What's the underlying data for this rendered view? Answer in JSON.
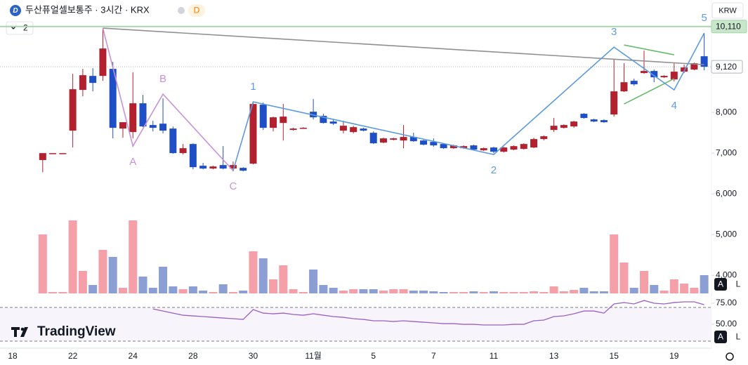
{
  "header": {
    "logo": "D",
    "symbol": "두산퓨얼셀보통주 · 3시간 · KRX",
    "badge": "D",
    "indicator_count": "2",
    "currency": "KRW"
  },
  "buttons": {
    "auto": "A",
    "log": "L"
  },
  "brand": "TradingView",
  "chart_data": {
    "type": "candlestick",
    "categories": [
      "18",
      null,
      null,
      null,
      null,
      null,
      "22",
      null,
      null,
      null,
      null,
      null,
      "24",
      null,
      null,
      null,
      null,
      null,
      "28",
      null,
      null,
      null,
      null,
      null,
      "30",
      null,
      null,
      null,
      null,
      null,
      "11월",
      null,
      null,
      null,
      null,
      null,
      "5",
      null,
      null,
      null,
      null,
      null,
      "7",
      null,
      null,
      null,
      null,
      null,
      "11",
      null,
      null,
      null,
      null,
      null,
      "13",
      null,
      null,
      null,
      null,
      null,
      "15",
      null,
      null,
      null,
      null,
      null,
      "19",
      null,
      null,
      null
    ],
    "open": [
      null,
      null,
      null,
      6830,
      7000,
      7000,
      7552,
      8552,
      8896,
      8896,
      9069,
      7603,
      7517,
      8224,
      7690,
      7724,
      7603,
      7000,
      7224,
      6690,
      6621,
      6707,
      6621,
      6638,
      6741,
      8190,
      7621,
      7741,
      7569,
      7621,
      8017,
      7914,
      7776,
      7552,
      7517,
      7603,
      7500,
      7259,
      7328,
      7310,
      7397,
      7310,
      7276,
      7224,
      7121,
      7121,
      7190,
      7069,
      7138,
      7034,
      7086,
      7103,
      7138,
      7345,
      7569,
      7621,
      7655,
      7966,
      7828,
      7810,
      7948,
      8517,
      8776,
      8966,
      9017,
      8862,
      8810,
      9000,
      9052,
      9379
    ],
    "high": [
      null,
      null,
      null,
      7000,
      7000,
      7000,
      8948,
      9069,
      9086,
      10069,
      9241,
      7759,
      8983,
      8431,
      7793,
      8345,
      7655,
      7224,
      7241,
      6759,
      6690,
      7172,
      6793,
      6655,
      8259,
      8241,
      7897,
      8207,
      7621,
      7638,
      8328,
      7966,
      7828,
      7793,
      7672,
      7621,
      7534,
      7379,
      7379,
      7690,
      7500,
      7328,
      7362,
      7241,
      7207,
      7190,
      7207,
      7138,
      7155,
      7155,
      7190,
      7241,
      7379,
      7431,
      7862,
      7707,
      7793,
      7983,
      7845,
      7828,
      9310,
      9207,
      8828,
      9517,
      9052,
      8914,
      9207,
      9172,
      9224,
      9948
    ],
    "low": [
      null,
      null,
      null,
      6530,
      7000,
      7000,
      7138,
      8396,
      8517,
      8776,
      7362,
      7379,
      7362,
      7638,
      7534,
      7483,
      6983,
      6966,
      6603,
      6603,
      6603,
      6603,
      6552,
      6552,
      6724,
      7569,
      7534,
      7310,
      7552,
      7603,
      7828,
      7724,
      7690,
      7483,
      7483,
      7534,
      7224,
      7241,
      7310,
      7121,
      7276,
      7190,
      7155,
      7103,
      7103,
      7103,
      7069,
      7052,
      7000,
      7017,
      7069,
      7086,
      7121,
      7310,
      7517,
      7603,
      7621,
      7845,
      7759,
      7741,
      7897,
      8500,
      8655,
      8948,
      8741,
      8845,
      8759,
      8966,
      9034,
      9034
    ],
    "close": [
      null,
      null,
      null,
      7000,
      7000,
      7000,
      8569,
      8914,
      8724,
      9569,
      7621,
      7759,
      8224,
      7655,
      7621,
      7552,
      7000,
      7121,
      6655,
      6621,
      6672,
      6621,
      6707,
      6569,
      8207,
      7621,
      7879,
      7897,
      7603,
      7621,
      7879,
      7741,
      7724,
      7672,
      7638,
      7552,
      7241,
      7362,
      7362,
      7397,
      7293,
      7207,
      7190,
      7121,
      7190,
      7172,
      7086,
      7121,
      7034,
      7138,
      7172,
      7224,
      7345,
      7414,
      7672,
      7690,
      7776,
      7862,
      7776,
      7759,
      8517,
      8741,
      8690,
      9017,
      8862,
      8897,
      9000,
      9103,
      9207,
      9120
    ],
    "volume": [
      null,
      null,
      null,
      84,
      2,
      2,
      104,
      32,
      12,
      62,
      52,
      8,
      104,
      24,
      8,
      38,
      10,
      6,
      10,
      4,
      2,
      13,
      2,
      4,
      60,
      50,
      20,
      40,
      6,
      2,
      34,
      12,
      8,
      4,
      6,
      6,
      6,
      4,
      6,
      6,
      4,
      4,
      3,
      2,
      2,
      2,
      3,
      2,
      3,
      2,
      2,
      2,
      3,
      2,
      10,
      3,
      5,
      8,
      3,
      3,
      84,
      44,
      8,
      32,
      12,
      4,
      20,
      14,
      8,
      26
    ],
    "rsi": [
      null,
      null,
      null,
      null,
      null,
      null,
      null,
      null,
      null,
      null,
      null,
      null,
      null,
      null,
      68.3,
      65.8,
      63.3,
      60.8,
      60,
      59.2,
      58.3,
      57.5,
      56.7,
      55.8,
      67.5,
      63.3,
      62.5,
      63.3,
      61.7,
      60.8,
      62.5,
      60.8,
      59.2,
      58.3,
      56.7,
      55.8,
      54.2,
      54.2,
      53.3,
      54.2,
      53.3,
      52.5,
      51.7,
      50.8,
      50.8,
      50,
      50,
      49.2,
      49.2,
      49.2,
      50,
      50,
      54.2,
      55,
      59.2,
      60,
      62.5,
      65.8,
      65.8,
      63.3,
      74.2,
      75.8,
      74.2,
      78.3,
      75,
      74.2,
      75.8,
      76.7,
      76.7,
      73.3
    ],
    "ylim": [
      3400,
      10760
    ],
    "yticks": [
      {
        "value": 4000,
        "label": "4,000"
      },
      {
        "value": 5000,
        "label": "5,000"
      },
      {
        "value": 6000,
        "label": "6,000"
      },
      {
        "value": 7000,
        "label": "7,000"
      },
      {
        "value": 8000,
        "label": "8,000"
      }
    ],
    "volume_lim": [
      0,
      120
    ],
    "rsi_ylim": [
      26.7,
      79.2
    ],
    "rsi_yticks": [
      {
        "value": 75,
        "label": "75.00"
      },
      {
        "value": 50,
        "label": "50.00"
      }
    ],
    "rsi_bands": [
      70,
      30
    ],
    "price_lines": [
      {
        "value": 10110,
        "label": "10,110",
        "color": "#a5d6a7"
      },
      {
        "value": 9120,
        "label": "9,120",
        "color": "#b2b5be"
      }
    ],
    "up_color": "#b3212e",
    "down_color": "#1f4fc6",
    "volume_up_color": "#f5a0a8",
    "volume_down_color": "#8b9fd4",
    "rsi_color": "#9c5fc4",
    "waves": [
      {
        "color": "#c792d8",
        "points": [
          {
            "x": 9,
            "y": 10069,
            "label": null
          },
          {
            "x": 12,
            "y": 7172,
            "label": "A"
          },
          {
            "x": 15,
            "y": 8448,
            "label": "B"
          },
          {
            "x": 22,
            "y": 6569,
            "label": "C"
          }
        ]
      },
      {
        "color": "#5b9be0",
        "points": [
          {
            "x": 22,
            "y": 6569,
            "label": null
          },
          {
            "x": 24,
            "y": 8259,
            "label": "1"
          },
          {
            "x": 48,
            "y": 6966,
            "label": "2"
          },
          {
            "x": 60,
            "y": 9603,
            "label": "3"
          },
          {
            "x": 66,
            "y": 8552,
            "label": "4"
          },
          {
            "x": 69,
            "y": 9948,
            "label": "5"
          }
        ]
      }
    ],
    "lines": [
      {
        "color": "#8f8f94",
        "points": [
          {
            "x": 9,
            "y": 10069
          },
          {
            "x": 69,
            "y": 9172
          }
        ]
      },
      {
        "color": "#66bb6a",
        "points": [
          {
            "x": 61,
            "y": 9655
          },
          {
            "x": 66,
            "y": 9414
          }
        ]
      },
      {
        "color": "#66bb6a",
        "points": [
          {
            "x": 61,
            "y": 8207
          },
          {
            "x": 66,
            "y": 8828
          }
        ]
      }
    ]
  }
}
